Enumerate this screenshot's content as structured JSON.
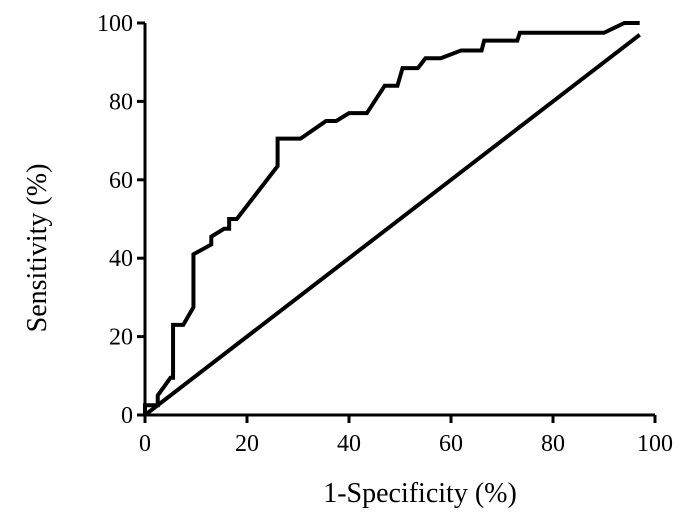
{
  "chart_data": {
    "type": "line",
    "title": "",
    "xlabel": "1-Specificity (%)",
    "ylabel": "Sensitivity (%)",
    "xlim": [
      0,
      100
    ],
    "ylim": [
      0,
      100
    ],
    "x_ticks": [
      "0",
      "20",
      "40",
      "60",
      "80",
      "100"
    ],
    "y_ticks": [
      "0",
      "20",
      "40",
      "60",
      "80",
      "100"
    ],
    "grid": false,
    "legend": "none",
    "line_color": "#000000",
    "series": [
      {
        "points": [
          [
            0,
            0
          ],
          [
            0,
            2.5
          ],
          [
            2.5,
            2.5
          ],
          [
            2.5,
            5
          ],
          [
            5,
            9.5
          ],
          [
            5.5,
            9.5
          ],
          [
            5.5,
            23
          ],
          [
            7.5,
            23
          ],
          [
            9.5,
            27.5
          ],
          [
            9.5,
            41
          ],
          [
            13,
            43.5
          ],
          [
            13,
            45.5
          ],
          [
            15.5,
            47.5
          ],
          [
            16.5,
            47.5
          ],
          [
            16.5,
            50
          ],
          [
            18,
            50
          ],
          [
            26,
            63.5
          ],
          [
            26,
            70.5
          ],
          [
            30.5,
            70.5
          ],
          [
            35.5,
            75
          ],
          [
            37.5,
            75
          ],
          [
            40,
            77
          ],
          [
            43.5,
            77
          ],
          [
            47,
            84
          ],
          [
            49.5,
            84
          ],
          [
            50.5,
            88.5
          ],
          [
            53.5,
            88.5
          ],
          [
            55,
            91
          ],
          [
            58,
            91
          ],
          [
            62,
            93
          ],
          [
            66,
            93
          ],
          [
            66.5,
            95.5
          ],
          [
            73,
            95.5
          ],
          [
            73.5,
            97.5
          ],
          [
            90,
            97.5
          ],
          [
            94,
            100
          ],
          [
            97,
            100
          ]
        ]
      },
      {
        "points": [
          [
            0,
            0
          ],
          [
            97,
            97
          ]
        ]
      }
    ]
  }
}
